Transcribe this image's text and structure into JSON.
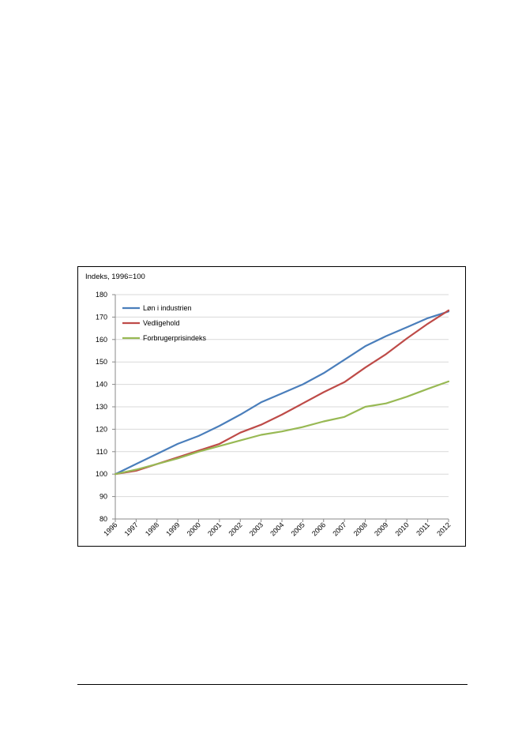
{
  "chart_data": {
    "type": "line",
    "title": "Indeks, 1996=100",
    "xlabel": "",
    "ylabel": "",
    "ylim": [
      80,
      180
    ],
    "yticks": [
      80,
      90,
      100,
      110,
      120,
      130,
      140,
      150,
      160,
      170,
      180
    ],
    "grid": true,
    "legend_position": "top-left",
    "categories": [
      "1996",
      "1997",
      "1998",
      "1999",
      "2000",
      "2001",
      "2002",
      "2003",
      "2004",
      "2005",
      "2006",
      "2007",
      "2008",
      "2009",
      "2010",
      "2011",
      "2012"
    ],
    "series": [
      {
        "name": "Løn i industrien",
        "color": "#4a7ebb",
        "values": [
          100,
          104.5,
          109,
          113.5,
          117,
          121.5,
          126.5,
          132,
          136,
          140,
          145,
          151,
          157,
          161.5,
          165.5,
          169.5,
          172.5
        ]
      },
      {
        "name": "Vedligehold",
        "color": "#be4b48",
        "values": [
          100,
          101.5,
          104.5,
          107.5,
          110.5,
          113.5,
          118.5,
          122,
          126.5,
          131.5,
          136.5,
          141,
          147.5,
          153.5,
          160.5,
          167,
          173
        ]
      },
      {
        "name": "Forbrugerprisindeks",
        "color": "#98b954",
        "values": [
          100,
          102,
          104.5,
          107,
          110,
          112.5,
          115,
          117.5,
          119,
          121,
          123.5,
          125.5,
          130,
          131.5,
          134.5,
          138,
          141.3
        ]
      }
    ]
  }
}
